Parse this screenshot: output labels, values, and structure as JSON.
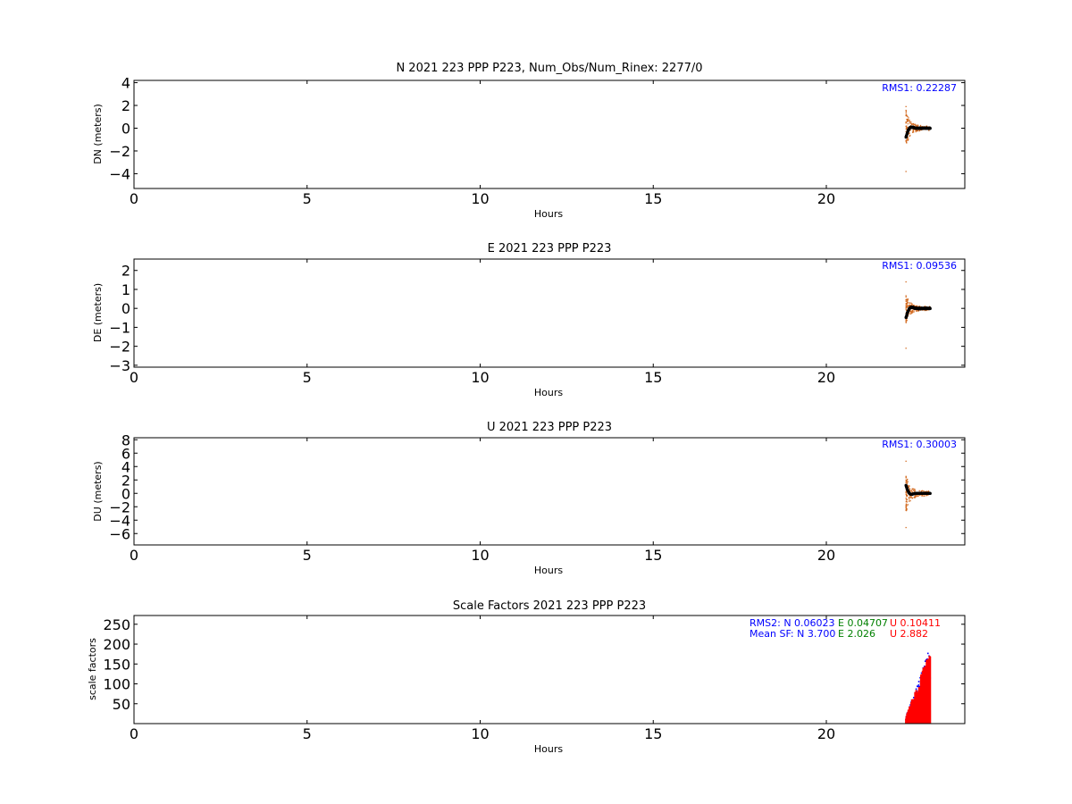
{
  "colors": {
    "blue": "#0000ff",
    "green": "#008000",
    "red": "#ff0000",
    "orange": "#d2691e",
    "black": "#000000"
  },
  "chart_data": [
    {
      "type": "scatter",
      "title": "N 2021 223 PPP  P223, Num_Obs/Num_Rinex: 2277/0",
      "xlabel": "Hours",
      "ylabel": "DN (meters)",
      "xlim": [
        0,
        24
      ],
      "ylim": [
        -5.3,
        4.2
      ],
      "xticks": [
        0,
        5,
        10,
        15,
        20
      ],
      "yticks": [
        -4,
        -2,
        0,
        2,
        4
      ],
      "annotation": "RMS1:  0.22287",
      "series_shape": {
        "start_hour": 22.3,
        "end_hour": 23.0,
        "scatter_amp": 1.4,
        "spike_max": 1.9,
        "spike_min": -3.8,
        "filtered_start": -0.8
      }
    },
    {
      "type": "scatter",
      "title": "E 2021 223 PPP  P223",
      "xlabel": "Hours",
      "ylabel": "DE (meters)",
      "xlim": [
        0,
        24
      ],
      "ylim": [
        -3.1,
        2.6
      ],
      "xticks": [
        0,
        5,
        10,
        15,
        20
      ],
      "yticks": [
        -3,
        -2,
        -1,
        0,
        1,
        2
      ],
      "annotation": "RMS1:  0.09536",
      "series_shape": {
        "start_hour": 22.3,
        "end_hour": 23.0,
        "scatter_amp": 0.7,
        "spike_max": 1.4,
        "spike_min": -2.1,
        "filtered_start": -0.5
      }
    },
    {
      "type": "scatter",
      "title": "U 2021 223 PPP  P223",
      "xlabel": "Hours",
      "ylabel": "DU (meters)",
      "xlim": [
        0,
        24
      ],
      "ylim": [
        -7.7,
        8.3
      ],
      "xticks": [
        0,
        5,
        10,
        15,
        20
      ],
      "yticks": [
        -6,
        -4,
        -2,
        0,
        2,
        4,
        6,
        8
      ],
      "annotation": "RMS1:  0.30003",
      "series_shape": {
        "start_hour": 22.3,
        "end_hour": 23.0,
        "scatter_amp": 2.5,
        "spike_max": 4.8,
        "spike_min": -5.1,
        "filtered_start": 1.2
      }
    },
    {
      "type": "scatter",
      "title": "Scale Factors 2021 223 PPP  P223",
      "xlabel": "Hours",
      "ylabel": "scale factors",
      "xlim": [
        0,
        24
      ],
      "ylim": [
        0,
        272
      ],
      "xticks": [
        0,
        5,
        10,
        15,
        20
      ],
      "yticks": [
        50,
        100,
        150,
        200,
        250
      ],
      "annotations": {
        "rms2_label": "RMS2: N  0.06023",
        "rms2_e": "E  0.04707",
        "rms2_u": "U  0.10411",
        "mean_label": "Mean SF: N   3.700",
        "mean_e": "E   2.026",
        "mean_u": "U   2.882"
      },
      "series": [
        {
          "name": "N",
          "color": "#0000ff",
          "max": 195
        },
        {
          "name": "E",
          "color": "#008000",
          "max": 55
        },
        {
          "name": "U",
          "color": "#ff0000",
          "max": 190
        }
      ],
      "series_shape": {
        "start_hour": 22.3,
        "end_hour": 23.0
      }
    }
  ]
}
